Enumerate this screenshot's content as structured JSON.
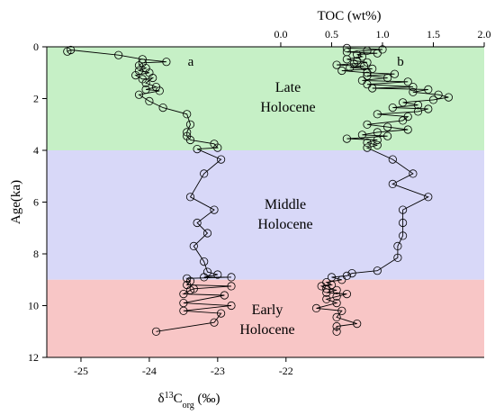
{
  "chart_data": {
    "type": "line",
    "xlabel_bottom": {
      "base": "δ",
      "sup": "13",
      "main": "C",
      "sub": "org",
      "unit": " (‰)"
    },
    "xlabel_top": "TOC (wt%)",
    "ylabel": "Age(ka)",
    "ylim": [
      0,
      12
    ],
    "y_ticks": [
      "0",
      "2",
      "4",
      "6",
      "8",
      "10",
      "12"
    ],
    "x_bottom_range": [
      -25.5,
      -19.1
    ],
    "x_bottom_ticks": [
      "-25",
      "-24",
      "-23",
      "-22"
    ],
    "x_top_range": [
      -2.3,
      2.0
    ],
    "x_top_ticks": [
      "0.0",
      "0.5",
      "1.0",
      "1.5",
      "2.0"
    ],
    "bands": [
      {
        "label_lines": [
          "Late",
          "Holocene"
        ],
        "from": 0,
        "to": 4,
        "color": "#c6f0c6"
      },
      {
        "label_lines": [
          "Middle",
          "Holocene"
        ],
        "from": 4,
        "to": 9,
        "color": "#d8d8f8"
      },
      {
        "label_lines": [
          "Early",
          "Holocene"
        ],
        "from": 9,
        "to": 12,
        "color": "#f8c6c6"
      }
    ],
    "panel_labels": [
      "a",
      "b"
    ],
    "series": [
      {
        "axis": "bottom",
        "points": [
          [
            -25.2,
            0.18
          ],
          [
            -25.15,
            0.12
          ],
          [
            -24.45,
            0.32
          ],
          [
            -24.1,
            0.48
          ],
          [
            -23.75,
            0.58
          ],
          [
            -24.1,
            0.62
          ],
          [
            -24.15,
            0.72
          ],
          [
            -24.05,
            0.82
          ],
          [
            -24.15,
            0.92
          ],
          [
            -24.0,
            1.0
          ],
          [
            -24.2,
            1.1
          ],
          [
            -24.1,
            1.25
          ],
          [
            -23.95,
            1.2
          ],
          [
            -24.05,
            1.4
          ],
          [
            -23.9,
            1.55
          ],
          [
            -24.05,
            1.65
          ],
          [
            -23.85,
            1.7
          ],
          [
            -24.15,
            1.85
          ],
          [
            -24.0,
            2.1
          ],
          [
            -23.8,
            2.35
          ],
          [
            -23.45,
            2.6
          ],
          [
            -23.4,
            3.0
          ],
          [
            -23.45,
            3.3
          ],
          [
            -23.45,
            3.45
          ],
          [
            -23.4,
            3.6
          ],
          [
            -23.05,
            3.75
          ],
          [
            -23.0,
            3.9
          ],
          [
            -23.3,
            3.95
          ],
          [
            -22.95,
            4.35
          ],
          [
            -23.2,
            4.9
          ],
          [
            -23.4,
            5.8
          ],
          [
            -23.05,
            6.3
          ],
          [
            -23.3,
            6.8
          ],
          [
            -23.15,
            7.2
          ],
          [
            -23.35,
            7.7
          ],
          [
            -23.2,
            8.3
          ],
          [
            -23.15,
            8.7
          ],
          [
            -23.0,
            8.8
          ],
          [
            -23.2,
            8.9
          ],
          [
            -22.8,
            8.9
          ],
          [
            -23.45,
            8.95
          ],
          [
            -23.4,
            9.05
          ],
          [
            -23.45,
            9.2
          ],
          [
            -22.8,
            9.25
          ],
          [
            -23.35,
            9.35
          ],
          [
            -23.4,
            9.4
          ],
          [
            -23.5,
            9.55
          ],
          [
            -22.9,
            9.6
          ],
          [
            -23.5,
            9.9
          ],
          [
            -22.8,
            10.0
          ],
          [
            -23.5,
            10.2
          ],
          [
            -22.95,
            10.3
          ],
          [
            -23.05,
            10.65
          ],
          [
            -23.9,
            11.0
          ]
        ]
      },
      {
        "axis": "top",
        "points": [
          [
            0.65,
            0.05
          ],
          [
            1.0,
            0.1
          ],
          [
            0.85,
            0.15
          ],
          [
            0.65,
            0.2
          ],
          [
            0.95,
            0.25
          ],
          [
            0.75,
            0.3
          ],
          [
            0.8,
            0.38
          ],
          [
            0.65,
            0.48
          ],
          [
            0.75,
            0.55
          ],
          [
            0.85,
            0.6
          ],
          [
            0.72,
            0.65
          ],
          [
            0.55,
            0.7
          ],
          [
            0.82,
            0.75
          ],
          [
            0.68,
            0.8
          ],
          [
            0.9,
            0.85
          ],
          [
            0.6,
            0.92
          ],
          [
            0.85,
            1.0
          ],
          [
            1.12,
            1.05
          ],
          [
            0.85,
            1.12
          ],
          [
            1.05,
            1.2
          ],
          [
            0.8,
            1.3
          ],
          [
            1.25,
            1.35
          ],
          [
            0.85,
            1.45
          ],
          [
            1.3,
            1.55
          ],
          [
            0.9,
            1.6
          ],
          [
            1.45,
            1.65
          ],
          [
            1.3,
            1.75
          ],
          [
            1.55,
            1.85
          ],
          [
            1.65,
            1.95
          ],
          [
            1.5,
            2.05
          ],
          [
            1.2,
            2.15
          ],
          [
            1.35,
            2.25
          ],
          [
            1.1,
            2.35
          ],
          [
            1.45,
            2.4
          ],
          [
            1.35,
            2.5
          ],
          [
            0.95,
            2.6
          ],
          [
            1.25,
            2.7
          ],
          [
            1.2,
            2.85
          ],
          [
            0.85,
            3.0
          ],
          [
            1.05,
            3.1
          ],
          [
            1.25,
            3.2
          ],
          [
            0.95,
            3.3
          ],
          [
            0.8,
            3.4
          ],
          [
            1.05,
            3.45
          ],
          [
            0.65,
            3.55
          ],
          [
            0.95,
            3.6
          ],
          [
            0.85,
            3.7
          ],
          [
            0.95,
            3.8
          ],
          [
            0.85,
            3.9
          ],
          [
            1.1,
            4.35
          ],
          [
            1.3,
            4.9
          ],
          [
            1.1,
            5.3
          ],
          [
            1.45,
            5.8
          ],
          [
            1.2,
            6.3
          ],
          [
            1.2,
            6.8
          ],
          [
            1.2,
            7.3
          ],
          [
            1.15,
            7.7
          ],
          [
            1.15,
            8.15
          ],
          [
            0.95,
            8.65
          ],
          [
            0.7,
            8.75
          ],
          [
            0.65,
            8.85
          ],
          [
            0.5,
            8.9
          ],
          [
            0.6,
            9.0
          ],
          [
            0.45,
            9.1
          ],
          [
            0.5,
            9.2
          ],
          [
            0.4,
            9.25
          ],
          [
            0.45,
            9.35
          ],
          [
            0.55,
            9.4
          ],
          [
            0.45,
            9.5
          ],
          [
            0.65,
            9.55
          ],
          [
            0.55,
            9.65
          ],
          [
            0.45,
            9.75
          ],
          [
            0.55,
            9.9
          ],
          [
            0.35,
            10.1
          ],
          [
            0.6,
            10.2
          ],
          [
            0.55,
            10.45
          ],
          [
            0.75,
            10.7
          ],
          [
            0.55,
            10.8
          ],
          [
            0.55,
            11.0
          ]
        ]
      }
    ]
  }
}
